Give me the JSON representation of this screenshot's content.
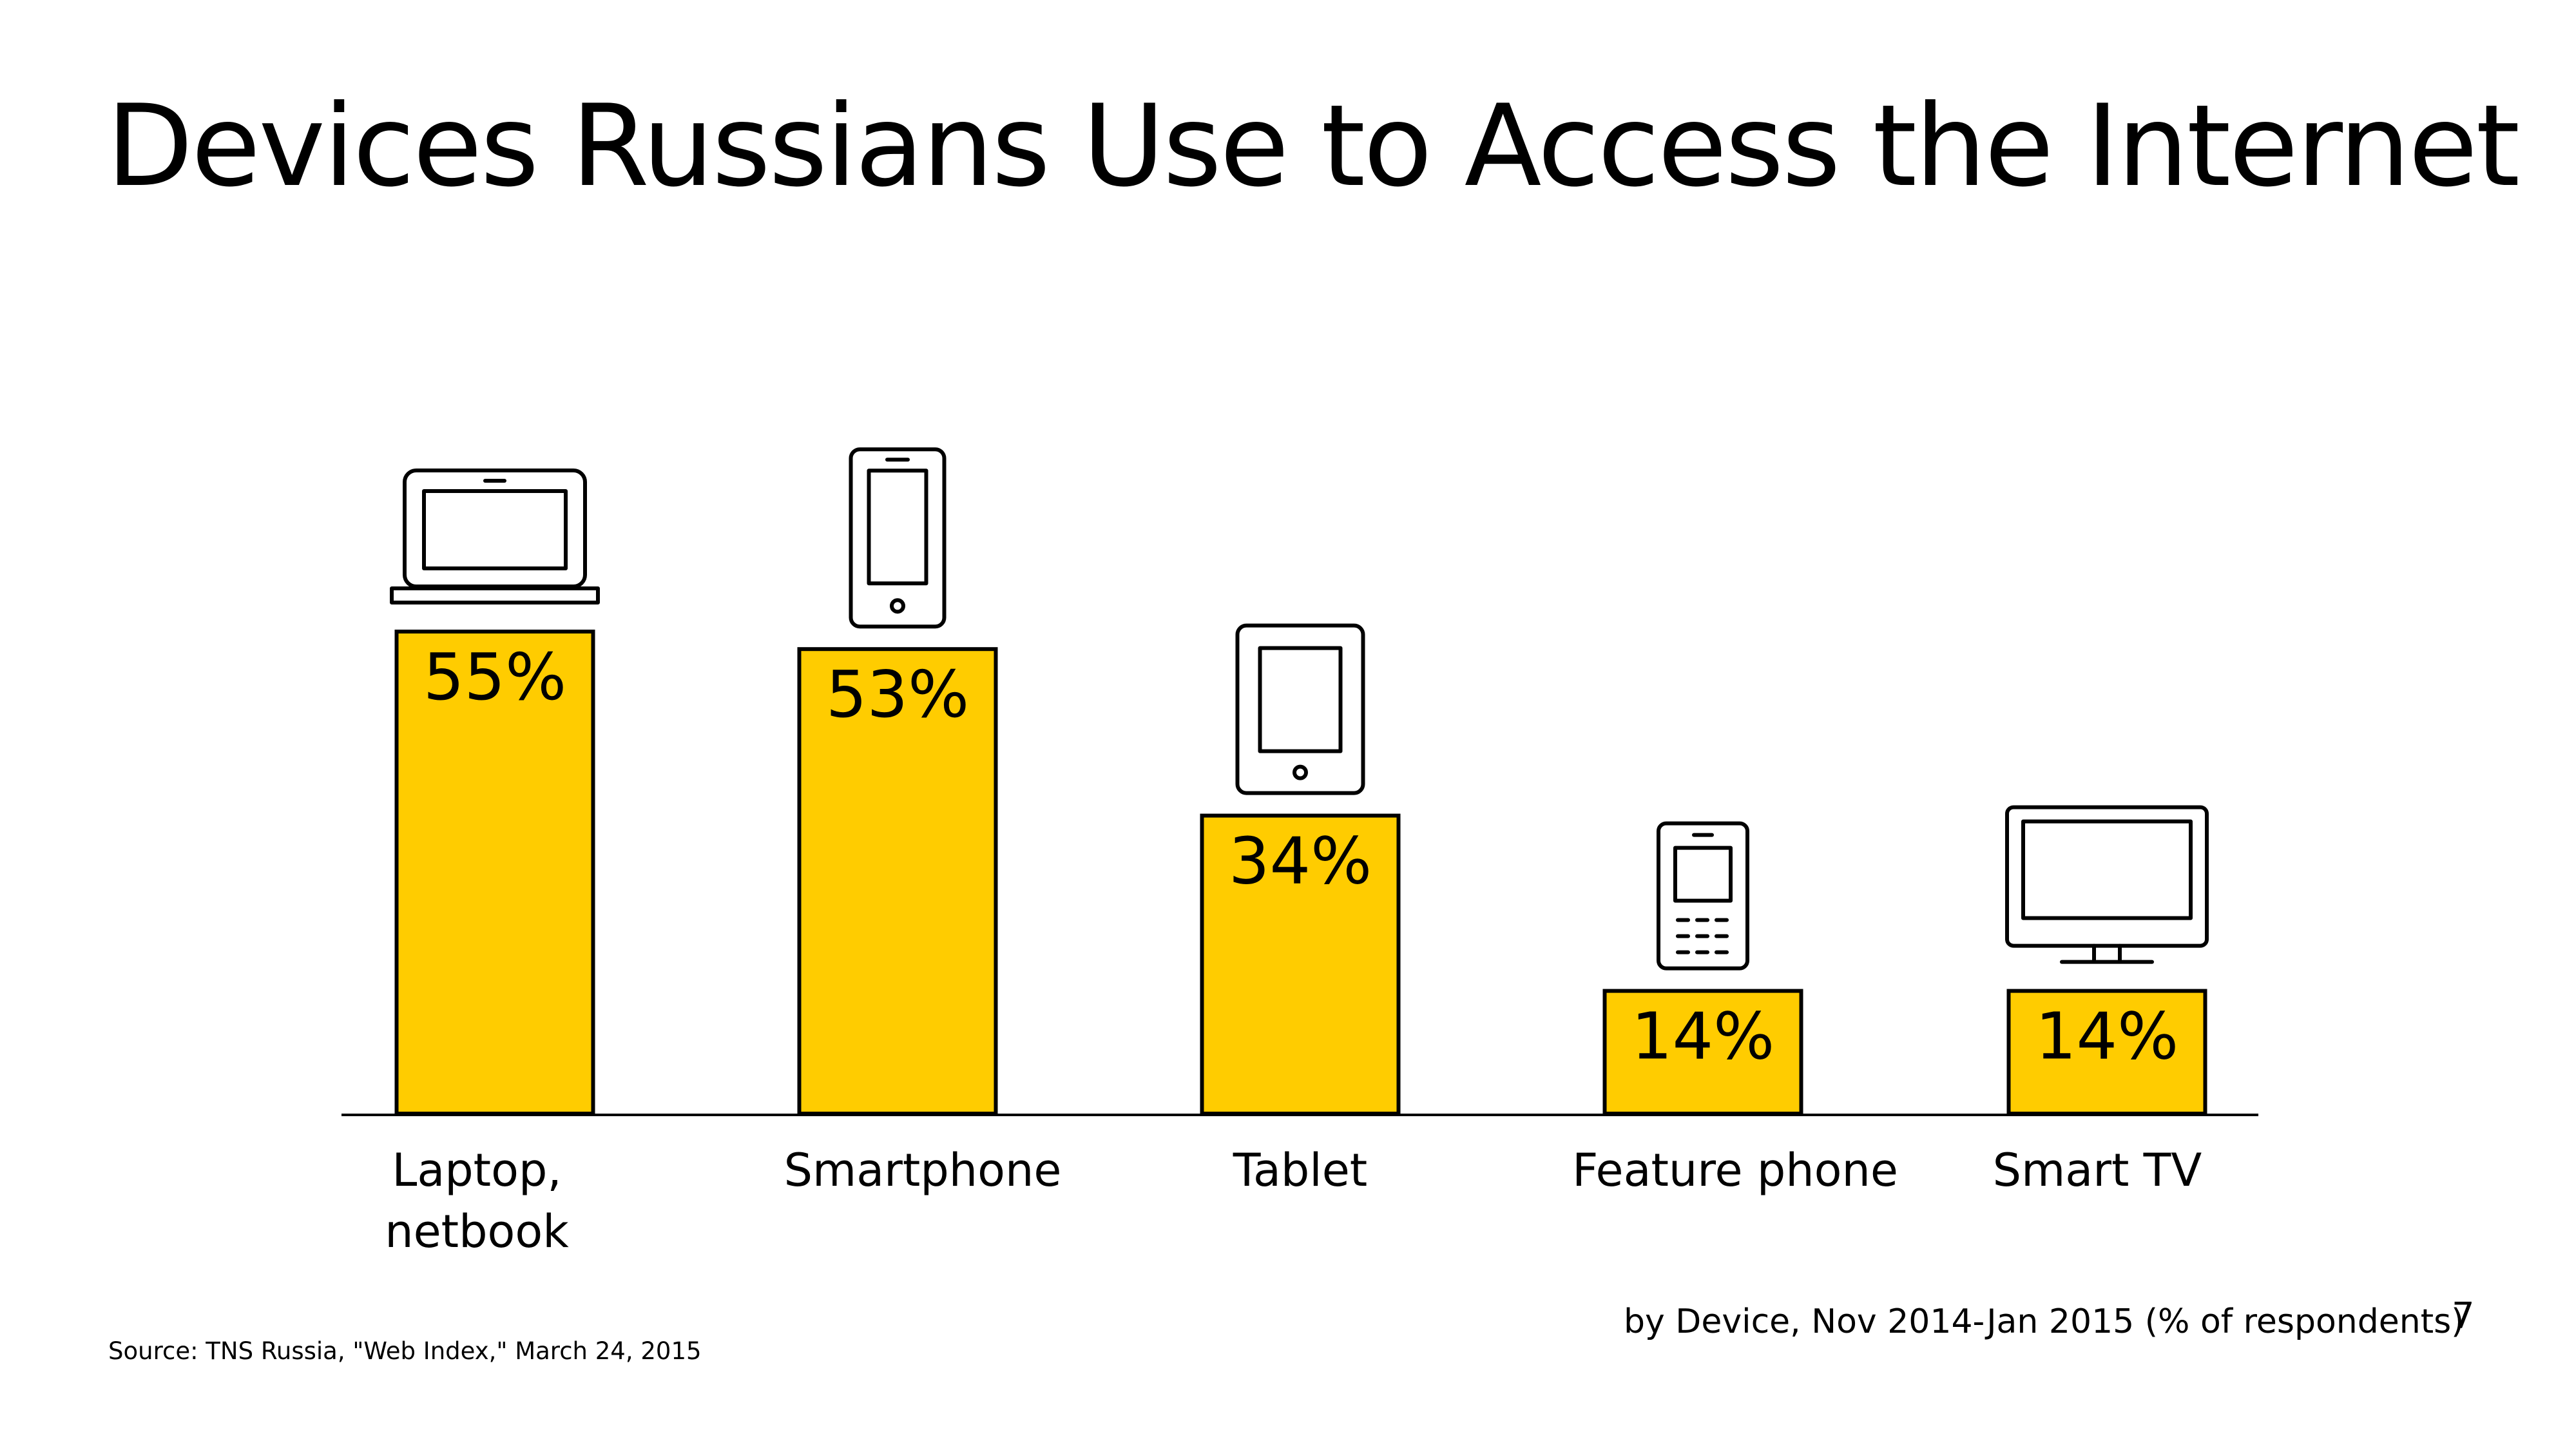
{
  "title": "Devices Russians Use to Access the Internet",
  "subtitle": "by Device, Nov 2014-Jan 2015 (% of respondents)",
  "source": "Source: TNS Russia, \"Web Index,\" March 24, 2015",
  "page_number": "7",
  "colors": {
    "bar_fill": "#FFCC00",
    "bar_stroke": "#000000",
    "axis": "#000000",
    "icon_stroke": "#000000"
  },
  "chart_data": {
    "type": "bar",
    "title": "Devices Russians Use to Access the Internet",
    "subtitle": "by Device, Nov 2014-Jan 2015 (% of respondents)",
    "categories": [
      "Laptop, netbook",
      "Smartphone",
      "Tablet",
      "Feature phone",
      "Smart TV"
    ],
    "category_label_lines": [
      [
        "Laptop,",
        "netbook"
      ],
      [
        "Smartphone"
      ],
      [
        "Tablet"
      ],
      [
        "Feature phone"
      ],
      [
        "Smart TV"
      ]
    ],
    "values": [
      55,
      53,
      34,
      14,
      14
    ],
    "value_labels": [
      "55%",
      "53%",
      "34%",
      "14%",
      "14%"
    ],
    "icons": [
      "laptop-icon",
      "smartphone-icon",
      "tablet-icon",
      "feature-phone-icon",
      "smart-tv-icon"
    ],
    "unit": "%",
    "xlabel": "",
    "ylabel": "",
    "ylim": [
      0,
      55
    ],
    "grid": false,
    "legend": "none"
  }
}
